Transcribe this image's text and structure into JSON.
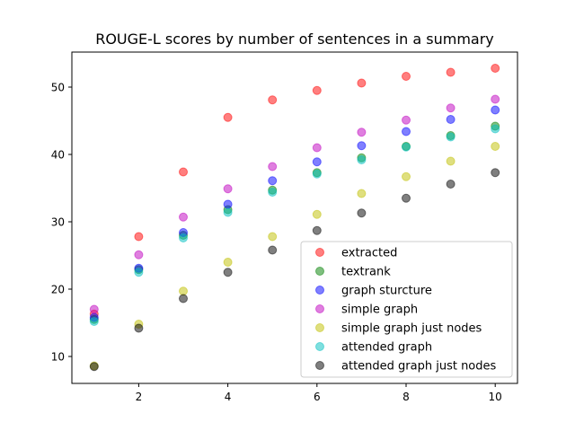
{
  "chart_data": {
    "type": "scatter",
    "title": "ROUGE-L scores by number of sentences in a summary",
    "xlabel": "",
    "ylabel": "",
    "x": [
      1,
      2,
      3,
      4,
      5,
      6,
      7,
      8,
      9,
      10
    ],
    "xlim": [
      0.5,
      10.5
    ],
    "ylim": [
      6,
      55.2
    ],
    "xticks": [
      2,
      4,
      6,
      8,
      10
    ],
    "yticks": [
      10,
      20,
      30,
      40,
      50
    ],
    "grid": false,
    "legend_position": "lower-right",
    "series": [
      {
        "name": "extracted",
        "color": "#ff0000",
        "values": [
          16.3,
          27.8,
          37.4,
          45.5,
          48.1,
          49.5,
          50.6,
          51.6,
          52.2,
          52.8
        ]
      },
      {
        "name": "textrank",
        "color": "#008000",
        "values": [
          15.5,
          22.9,
          28.0,
          31.8,
          34.7,
          37.3,
          39.5,
          41.2,
          42.8,
          44.2
        ]
      },
      {
        "name": "graph sturcture",
        "color": "#0000ff",
        "values": [
          15.8,
          23.1,
          28.4,
          32.6,
          36.1,
          38.9,
          41.3,
          43.4,
          45.2,
          46.6
        ]
      },
      {
        "name": "simple graph",
        "color": "#bf00bf",
        "values": [
          17.0,
          25.1,
          30.7,
          34.9,
          38.2,
          41.0,
          43.3,
          45.1,
          46.9,
          48.2
        ]
      },
      {
        "name": "simple graph just nodes",
        "color": "#bfbf00",
        "values": [
          8.6,
          14.8,
          19.7,
          24.0,
          27.8,
          31.1,
          34.2,
          36.7,
          39.0,
          41.2
        ]
      },
      {
        "name": "attended graph",
        "color": "#00bfbf",
        "values": [
          15.2,
          22.5,
          27.6,
          31.4,
          34.4,
          37.1,
          39.2,
          41.1,
          42.6,
          43.8
        ]
      },
      {
        "name": "attended graph just nodes",
        "color": "#000000",
        "values": [
          8.5,
          14.2,
          18.6,
          22.5,
          25.8,
          28.7,
          31.3,
          33.5,
          35.6,
          37.3
        ]
      }
    ]
  }
}
